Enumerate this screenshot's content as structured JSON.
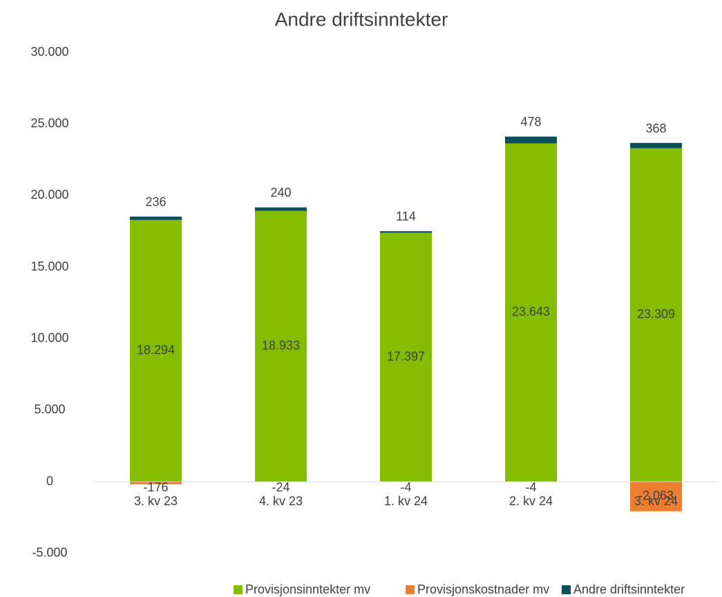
{
  "chart_data": {
    "type": "stacked_bar",
    "title": "Andre driftsinntekter",
    "categories": [
      "3. kv 23",
      "4. kv 23",
      "1. kv 24",
      "2. kv 24",
      "3. kv 24"
    ],
    "series": [
      {
        "name": "Provisjonsinntekter mv",
        "color": "#84bd00",
        "values": [
          18294,
          18933,
          17397,
          23643,
          23309
        ],
        "value_labels": [
          "18.294",
          "18.933",
          "17.397",
          "23.643",
          "23.309"
        ]
      },
      {
        "name": "Provisjonskostnader mv",
        "color": "#ed7d31",
        "values": [
          -176,
          -24,
          -4,
          -4,
          -2063
        ],
        "value_labels": [
          "-176",
          "-24",
          "-4",
          "-4",
          "-2.063"
        ]
      },
      {
        "name": "Andre driftsinntekter",
        "color": "#0b4f5c",
        "values": [
          236,
          240,
          114,
          478,
          368
        ]
      }
    ],
    "ylim": [
      -5000,
      30000
    ],
    "yticks": [
      {
        "value": -5000,
        "label": "-5.000"
      },
      0,
      {
        "value": 5000,
        "label": "5.000"
      },
      {
        "value": 10000,
        "label": "10.000"
      },
      {
        "value": 15000,
        "label": "15.000"
      },
      {
        "value": 20000,
        "label": "20.000"
      },
      {
        "value": 25000,
        "label": "25.000"
      },
      {
        "value": 30000,
        "label": "30.000"
      }
    ],
    "grid": false,
    "legend": "bottom"
  }
}
